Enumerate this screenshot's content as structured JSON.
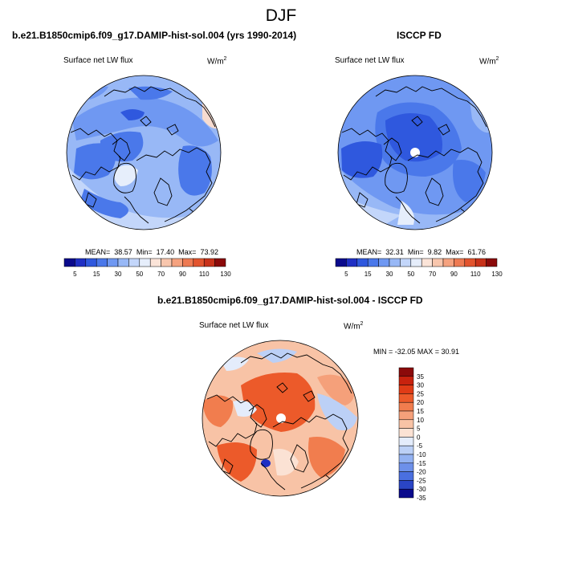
{
  "page": {
    "title": "DJF"
  },
  "panels": [
    {
      "title": "b.e21.B1850cmip6.f09_g17.DAMIP-hist-sol.004 (yrs 1990-2014)",
      "variable": "Surface net LW flux",
      "units": "W/m",
      "units_sup": "2",
      "stats": {
        "mean_label": "MEAN=",
        "mean": "38.57",
        "min_label": "Min=",
        "min": "17.40",
        "max_label": "Max=",
        "max": "73.92"
      },
      "colorbar_labels": [
        "5",
        "15",
        "30",
        "50",
        "70",
        "90",
        "110",
        "130"
      ]
    },
    {
      "title": "ISCCP FD",
      "variable": "Surface net LW flux",
      "units": "W/m",
      "units_sup": "2",
      "stats": {
        "mean_label": "MEAN=",
        "mean": "32.31",
        "min_label": "Min=",
        "min": "9.82",
        "max_label": "Max=",
        "max": "61.76"
      },
      "colorbar_labels": [
        "5",
        "15",
        "30",
        "50",
        "70",
        "90",
        "110",
        "130"
      ]
    },
    {
      "title": "b.e21.B1850cmip6.f09_g17.DAMIP-hist-sol.004 - ISCCP FD",
      "variable": "Surface net LW flux",
      "units": "W/m",
      "units_sup": "2",
      "stats_text": "MIN = -32.05 MAX =  30.91",
      "colorbar_labels": [
        "35",
        "30",
        "25",
        "20",
        "15",
        "10",
        "5",
        "0",
        "-5",
        "-10",
        "-15",
        "-20",
        "-25",
        "-30",
        "-35"
      ]
    }
  ],
  "colors": {
    "flux_scale": [
      "#0a0a8c",
      "#1f2fc4",
      "#2f58de",
      "#4a78ea",
      "#6f98f2",
      "#98b8f6",
      "#c3d6fa",
      "#e6eefb",
      "#fbe4d8",
      "#f8c6ad",
      "#f5a27f",
      "#ee7a52",
      "#e2542e",
      "#c8321a",
      "#8b0a0a"
    ],
    "diff_scale": [
      "#8b0a0a",
      "#c8220e",
      "#e03b16",
      "#ec5a2a",
      "#f17d4e",
      "#f5a07a",
      "#f8c3a6",
      "#fbe2d4",
      "#e4ecfb",
      "#bcd0f6",
      "#93b2f2",
      "#6d90ea",
      "#4a6fe0",
      "#2a45c6",
      "#0a0a8c"
    ],
    "coast": "#000000"
  }
}
